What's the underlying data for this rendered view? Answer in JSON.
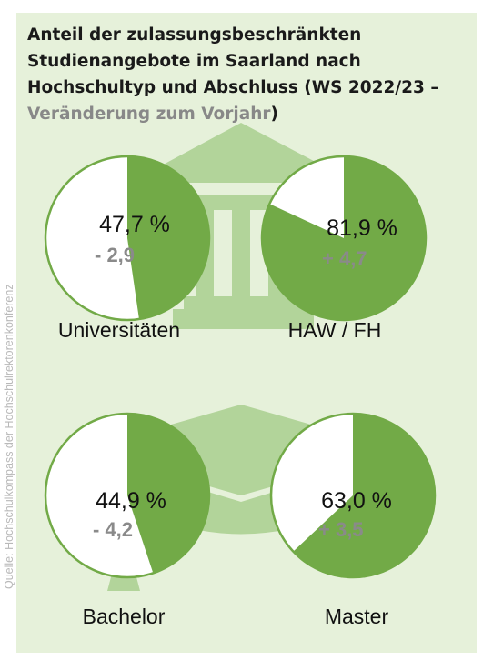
{
  "title": {
    "main": "Anteil der zulassungsbeschränkten Studienangebote im Saarland nach Hochschultyp und Abschluss (WS 2022/23 –",
    "highlight": "Veränderung zum Vorjahr",
    "close": ")"
  },
  "source": "Quelle: Hochschulkompass der Hochschulrektorenkonferenz",
  "colors": {
    "panel": "#e6f1da",
    "pie_fill": "#72aa47",
    "pie_outline": "#72aa47",
    "pie_empty": "#ffffff",
    "icon": "#b2d49a",
    "muted_text": "#8a8a8a"
  },
  "icons": [
    "university-building-icon",
    "graduation-cap-icon"
  ],
  "chart_data": {
    "type": "pie",
    "unit": "%",
    "charts": [
      {
        "category": "Universitäten",
        "value": 47.7,
        "value_label": "47,7 %",
        "change": -2.9,
        "change_label": "- 2,9"
      },
      {
        "category": "HAW / FH",
        "value": 81.9,
        "value_label": "81,9 %",
        "change": 4.7,
        "change_label": "+ 4,7"
      },
      {
        "category": "Bachelor",
        "value": 44.9,
        "value_label": "44,9 %",
        "change": -4.2,
        "change_label": "- 4,2"
      },
      {
        "category": "Master",
        "value": 63.0,
        "value_label": "63,0 %",
        "change": 3.5,
        "change_label": "+ 3,5"
      }
    ]
  }
}
